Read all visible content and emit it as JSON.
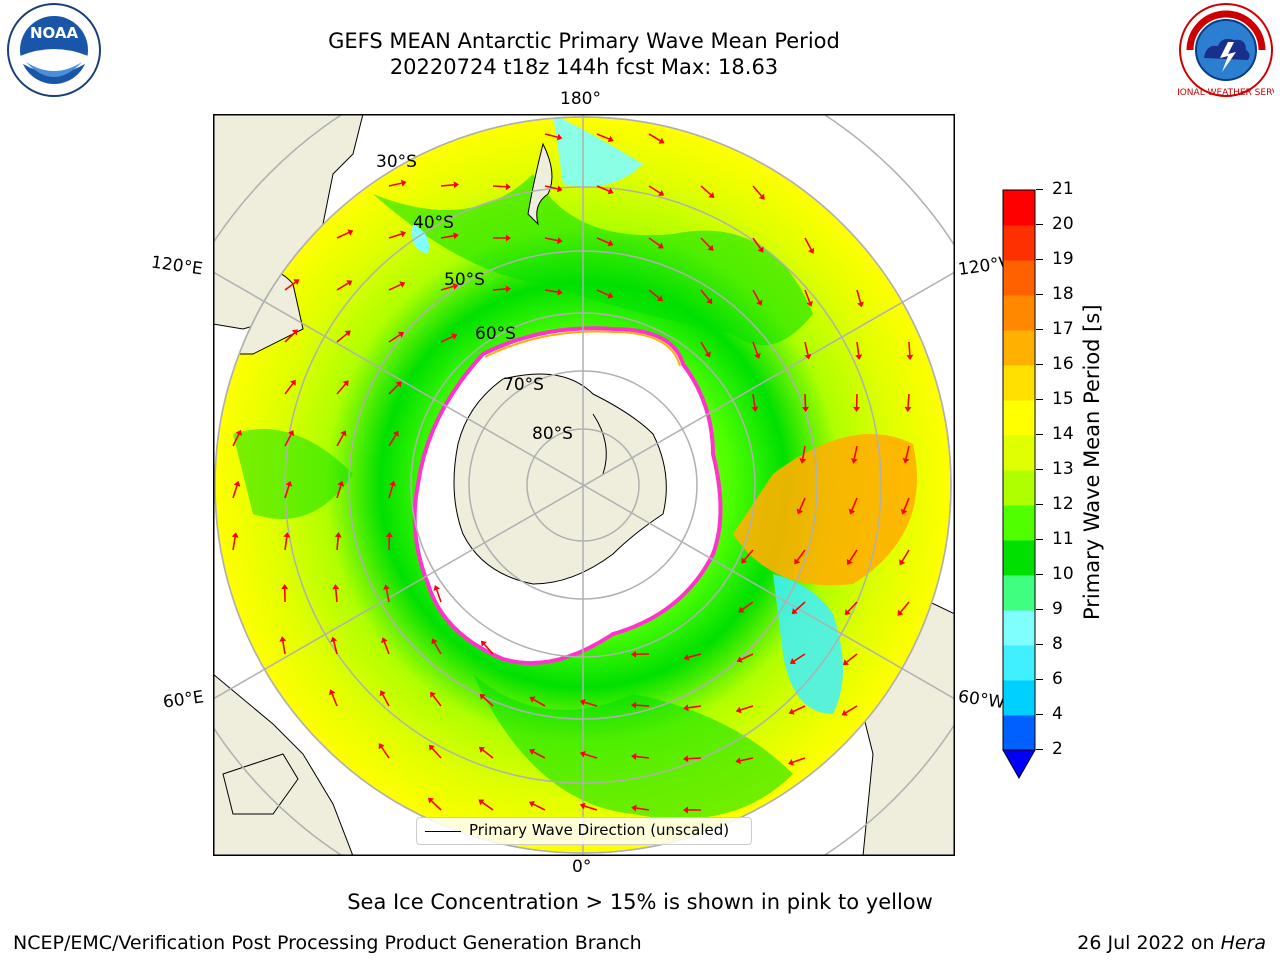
{
  "header": {
    "title_line1": "GEFS MEAN Antarctic Primary Wave Mean Period",
    "title_line2": "20220724 t18z 144h fcst   Max: 18.63"
  },
  "logos": {
    "left": {
      "icon": "noaa-logo-icon",
      "text": "NOAA"
    },
    "right": {
      "icon": "national-weather-service-logo-icon",
      "text": "NATIONAL WEATHER SERVICE"
    }
  },
  "map": {
    "projection": "south-polar-stereographic",
    "longitude_labels": {
      "top": "180°",
      "bottom": "0°",
      "left_upper": "120°E",
      "left_lower": "60°E",
      "right_upper": "120°W",
      "right_lower": "60°W"
    },
    "latitude_labels": [
      "30°S",
      "40°S",
      "50°S",
      "60°S",
      "70°S",
      "80°S"
    ],
    "legend": "Primary Wave Direction (unscaled)",
    "land_color": "#efeddc",
    "ice_edge_color": "#ff33cc",
    "arrow_color": "#ff0000",
    "grid_color": "#b0b0b0"
  },
  "colorbar": {
    "label": "Primary Wave Mean Period [s]",
    "ticks": [
      "2",
      "4",
      "6",
      "8",
      "9",
      "10",
      "11",
      "12",
      "13",
      "14",
      "15",
      "16",
      "17",
      "18",
      "19",
      "20",
      "21"
    ],
    "colors": [
      "#0060ff",
      "#00d0ff",
      "#40f0ff",
      "#80ffff",
      "#40ff80",
      "#00e000",
      "#50ff00",
      "#b0ff00",
      "#e0ff00",
      "#ffff00",
      "#ffe000",
      "#ffb000",
      "#ff8800",
      "#ff6000",
      "#ff3000",
      "#ff0000"
    ],
    "extend_color": "#0000ff"
  },
  "note": "Sea Ice Concentration > 15% is shown in pink to yellow",
  "footer": {
    "left": "NCEP/EMC/Verification Post Processing Product Generation Branch",
    "date": "26 Jul 2022 on ",
    "machine": "Hera"
  }
}
